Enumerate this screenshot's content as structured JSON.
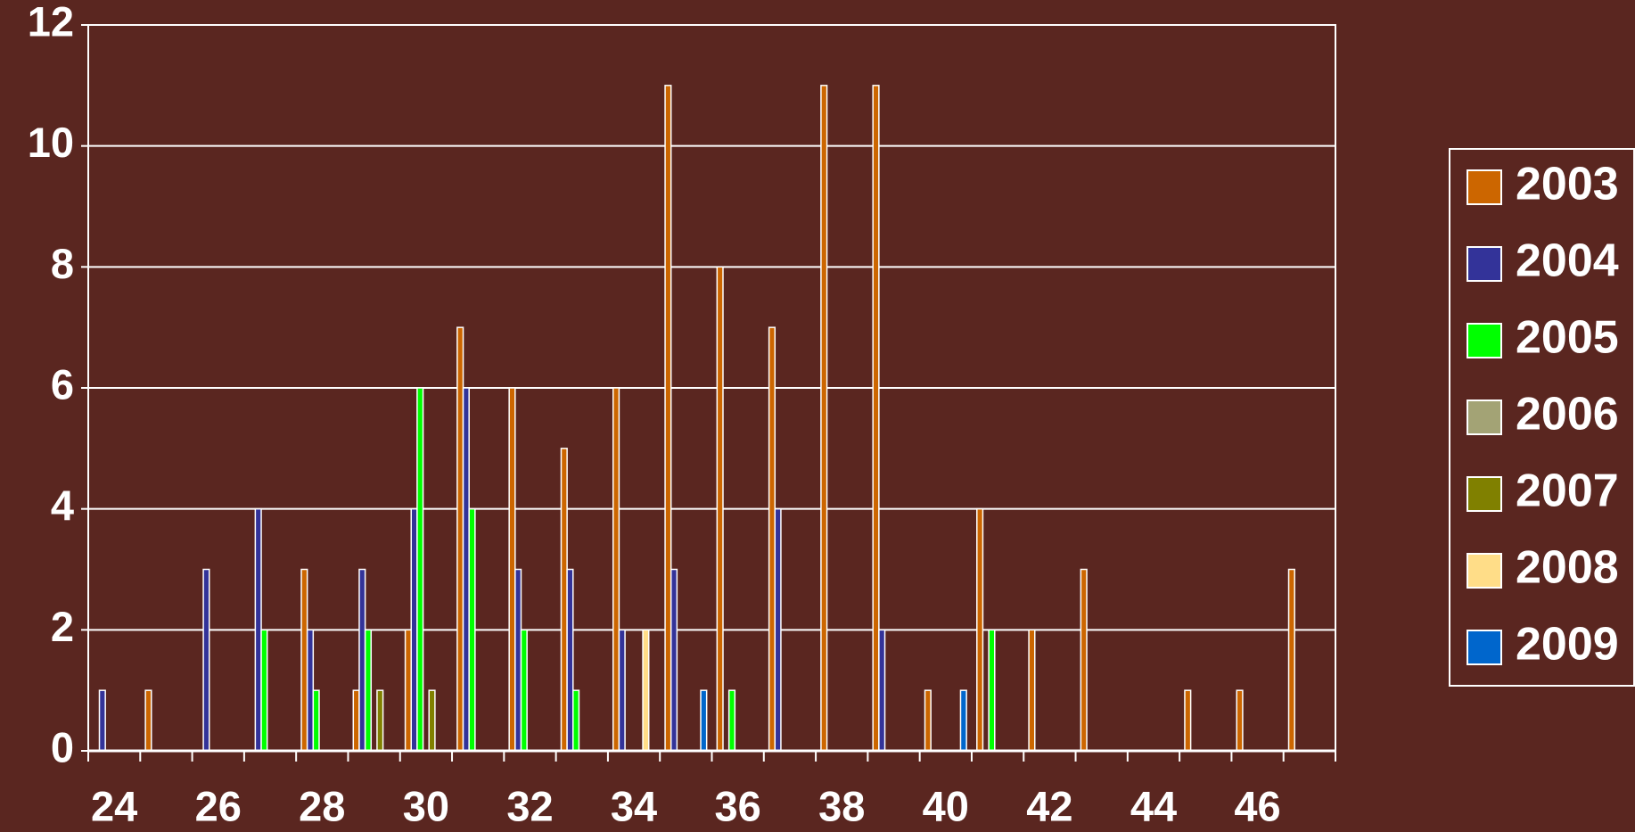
{
  "chart_data": {
    "type": "bar",
    "categories": [
      "24",
      null,
      "26",
      null,
      "28",
      null,
      "30",
      null,
      "32",
      null,
      "34",
      null,
      "36",
      null,
      "38",
      null,
      "40",
      null,
      "42",
      null,
      "44",
      null,
      "46",
      null
    ],
    "series": [
      {
        "name": "2003",
        "color": "#cc6600",
        "values": [
          0,
          1,
          0,
          0,
          3,
          1,
          2,
          7,
          6,
          5,
          6,
          11,
          8,
          7,
          11,
          11,
          1,
          4,
          2,
          3,
          0,
          1,
          1,
          3
        ]
      },
      {
        "name": "2004",
        "color": "#333399",
        "values": [
          1,
          0,
          3,
          4,
          2,
          3,
          4,
          6,
          3,
          3,
          2,
          3,
          0,
          4,
          0,
          2,
          0,
          0,
          0,
          0,
          0,
          0,
          0,
          0
        ]
      },
      {
        "name": "2005",
        "color": "#00ff00",
        "values": [
          0,
          0,
          0,
          2,
          1,
          2,
          6,
          4,
          2,
          1,
          0,
          0,
          1,
          0,
          0,
          0,
          0,
          2,
          0,
          0,
          0,
          0,
          0,
          0
        ]
      },
      {
        "name": "2006",
        "color": "#a3a375",
        "values": [
          0,
          0,
          0,
          0,
          0,
          0,
          0,
          0,
          0,
          0,
          0,
          0,
          0,
          0,
          0,
          0,
          0,
          0,
          0,
          0,
          0,
          0,
          0,
          0
        ]
      },
      {
        "name": "2007",
        "color": "#808000",
        "values": [
          0,
          0,
          0,
          0,
          0,
          1,
          1,
          0,
          0,
          0,
          0,
          0,
          0,
          0,
          0,
          0,
          0,
          0,
          0,
          0,
          0,
          0,
          0,
          0
        ]
      },
      {
        "name": "2008",
        "color": "#ffdd88",
        "values": [
          0,
          0,
          0,
          0,
          0,
          0,
          0,
          0,
          0,
          0,
          2,
          0,
          0,
          0,
          0,
          0,
          0,
          0,
          0,
          0,
          0,
          0,
          0,
          0
        ]
      },
      {
        "name": "2009",
        "color": "#0066cc",
        "values": [
          0,
          0,
          0,
          0,
          0,
          0,
          0,
          0,
          0,
          0,
          0,
          1,
          0,
          0,
          0,
          0,
          1,
          0,
          0,
          0,
          0,
          0,
          0,
          0
        ]
      }
    ],
    "ylim": [
      0,
      12
    ],
    "yticks": [
      0,
      2,
      4,
      6,
      8,
      10,
      12
    ],
    "grid": true,
    "legend": "right"
  }
}
